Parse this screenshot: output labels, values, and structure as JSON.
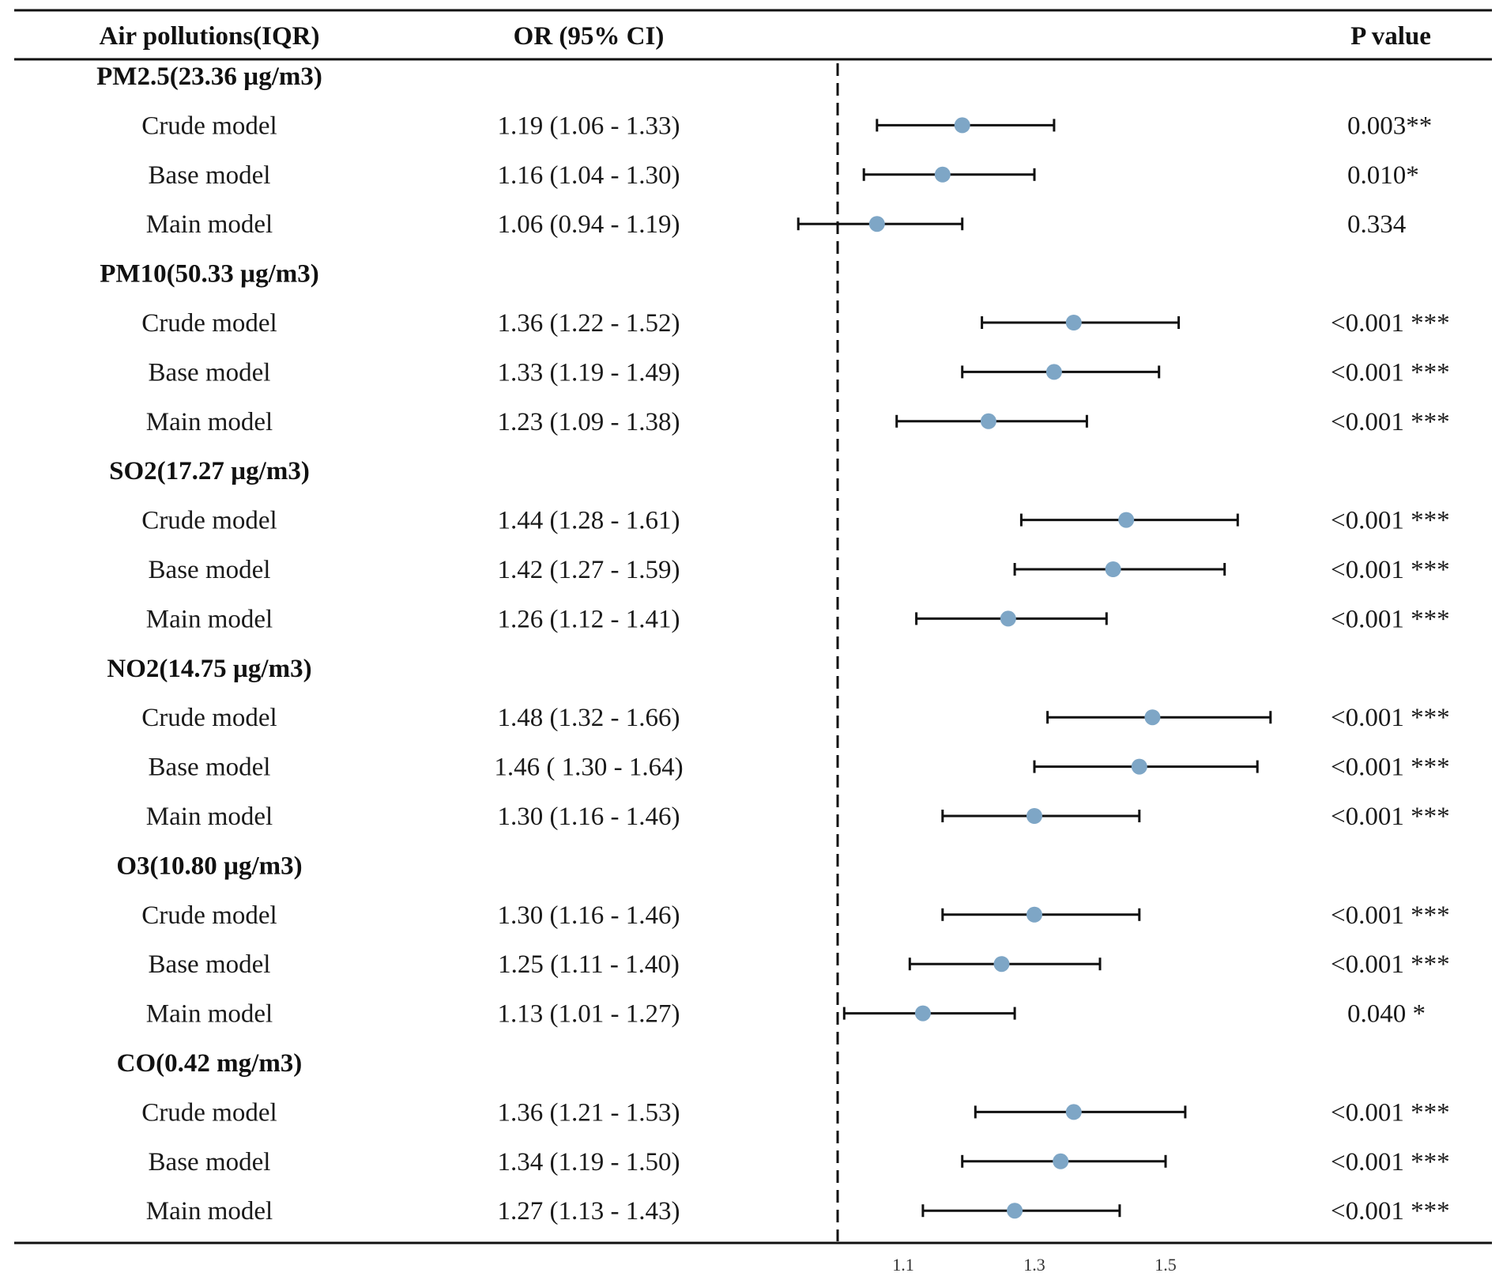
{
  "header": {
    "col_label": "Air pollutions(IQR)",
    "col_or": "OR (95% CI)",
    "col_p": "P value"
  },
  "chart_data": {
    "type": "forest",
    "title": "",
    "reference_line": 1.0,
    "xlim": [
      0.94,
      1.66
    ],
    "x_ticks": [
      1.1,
      1.3,
      1.5
    ],
    "x_tick_labels": [
      "1.1",
      "1.3",
      "1.5"
    ],
    "marker_color": "#7ea6c6",
    "groups": [
      {
        "label": "PM2.5(23.36 µg/m3)",
        "rows": [
          {
            "model": "Crude model",
            "or": 1.19,
            "lo": 1.06,
            "hi": 1.33,
            "or_text": "1.19 (1.06 - 1.33)",
            "p_text": "0.003**"
          },
          {
            "model": "Base model",
            "or": 1.16,
            "lo": 1.04,
            "hi": 1.3,
            "or_text": "1.16 (1.04 - 1.30)",
            "p_text": "0.010*"
          },
          {
            "model": "Main model",
            "or": 1.06,
            "lo": 0.94,
            "hi": 1.19,
            "or_text": "1.06 (0.94 - 1.19)",
            "p_text": "0.334"
          }
        ]
      },
      {
        "label": "PM10(50.33 µg/m3)",
        "rows": [
          {
            "model": "Crude model",
            "or": 1.36,
            "lo": 1.22,
            "hi": 1.52,
            "or_text": "1.36 (1.22 - 1.52)",
            "p_text": "<0.001 ***"
          },
          {
            "model": "Base model",
            "or": 1.33,
            "lo": 1.19,
            "hi": 1.49,
            "or_text": "1.33 (1.19 - 1.49)",
            "p_text": "<0.001 ***"
          },
          {
            "model": "Main model",
            "or": 1.23,
            "lo": 1.09,
            "hi": 1.38,
            "or_text": "1.23 (1.09 - 1.38)",
            "p_text": "<0.001 ***"
          }
        ]
      },
      {
        "label": "SO2(17.27 µg/m3)",
        "rows": [
          {
            "model": "Crude model",
            "or": 1.44,
            "lo": 1.28,
            "hi": 1.61,
            "or_text": "1.44 (1.28 - 1.61)",
            "p_text": "<0.001 ***"
          },
          {
            "model": "Base model",
            "or": 1.42,
            "lo": 1.27,
            "hi": 1.59,
            "or_text": "1.42 (1.27 - 1.59)",
            "p_text": "<0.001 ***"
          },
          {
            "model": "Main model",
            "or": 1.26,
            "lo": 1.12,
            "hi": 1.41,
            "or_text": "1.26 (1.12 - 1.41)",
            "p_text": "<0.001 ***"
          }
        ]
      },
      {
        "label": "NO2(14.75 µg/m3)",
        "rows": [
          {
            "model": "Crude model",
            "or": 1.48,
            "lo": 1.32,
            "hi": 1.66,
            "or_text": "1.48 (1.32 - 1.66)",
            "p_text": "<0.001 ***"
          },
          {
            "model": "Base model",
            "or": 1.46,
            "lo": 1.3,
            "hi": 1.64,
            "or_text": "1.46 ( 1.30 - 1.64)",
            "p_text": "<0.001 ***"
          },
          {
            "model": "Main model",
            "or": 1.3,
            "lo": 1.16,
            "hi": 1.46,
            "or_text": "1.30 (1.16 - 1.46)",
            "p_text": "<0.001 ***"
          }
        ]
      },
      {
        "label": "O3(10.80 µg/m3)",
        "rows": [
          {
            "model": "Crude model",
            "or": 1.3,
            "lo": 1.16,
            "hi": 1.46,
            "or_text": "1.30 (1.16 - 1.46)",
            "p_text": "<0.001 ***"
          },
          {
            "model": "Base model",
            "or": 1.25,
            "lo": 1.11,
            "hi": 1.4,
            "or_text": "1.25 (1.11 - 1.40)",
            "p_text": "<0.001 ***"
          },
          {
            "model": "Main model",
            "or": 1.13,
            "lo": 1.01,
            "hi": 1.27,
            "or_text": "1.13 (1.01 - 1.27)",
            "p_text": "0.040 *"
          }
        ]
      },
      {
        "label": "CO(0.42 mg/m3)",
        "rows": [
          {
            "model": "Crude model",
            "or": 1.36,
            "lo": 1.21,
            "hi": 1.53,
            "or_text": "1.36 (1.21 - 1.53)",
            "p_text": "<0.001 ***"
          },
          {
            "model": "Base model",
            "or": 1.34,
            "lo": 1.19,
            "hi": 1.5,
            "or_text": "1.34 (1.19 - 1.50)",
            "p_text": "<0.001 ***"
          },
          {
            "model": "Main model",
            "or": 1.27,
            "lo": 1.13,
            "hi": 1.43,
            "or_text": "1.27 (1.13 - 1.43)",
            "p_text": "<0.001 ***"
          }
        ]
      }
    ]
  }
}
